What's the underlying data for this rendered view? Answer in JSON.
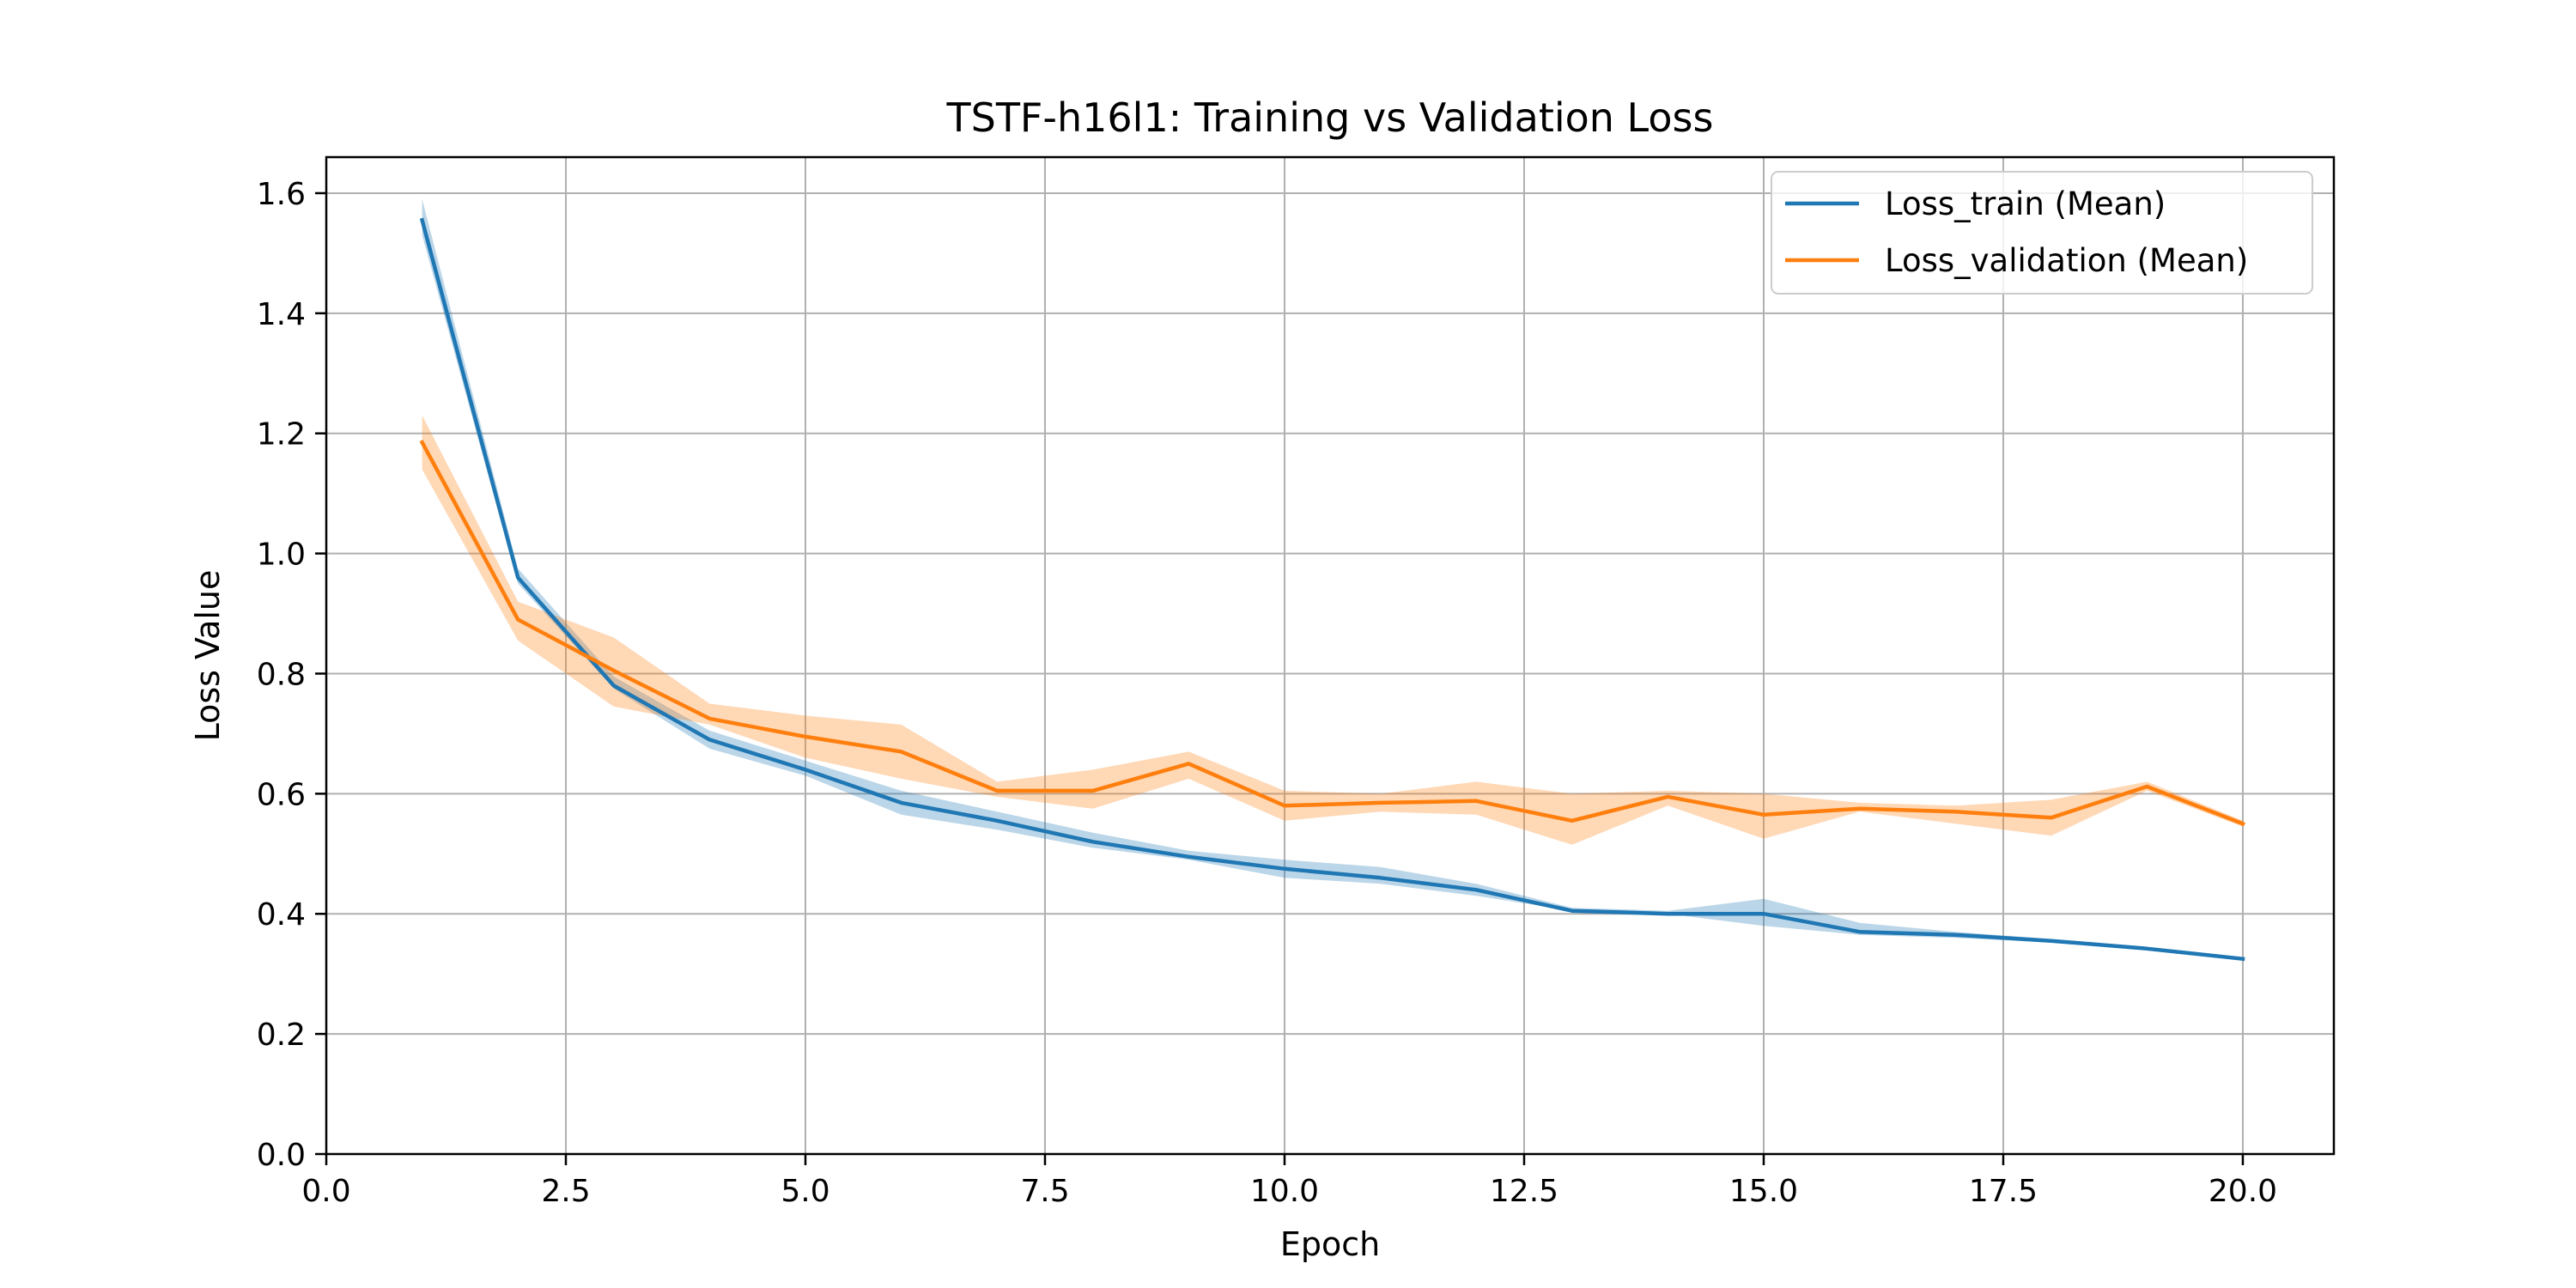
{
  "chart_data": {
    "type": "line",
    "title": "TSTF-h16l1: Training vs Validation Loss",
    "xlabel": "Epoch",
    "ylabel": "Loss Value",
    "xlim": [
      0,
      20.95
    ],
    "ylim": [
      0,
      1.66
    ],
    "xticks": [
      0.0,
      2.5,
      5.0,
      7.5,
      10.0,
      12.5,
      15.0,
      17.5,
      20.0
    ],
    "xtick_labels": [
      "0.0",
      "2.5",
      "5.0",
      "7.5",
      "10.0",
      "12.5",
      "15.0",
      "17.5",
      "20.0"
    ],
    "yticks": [
      0.0,
      0.2,
      0.4,
      0.6,
      0.8,
      1.0,
      1.2,
      1.4,
      1.6
    ],
    "ytick_labels": [
      "0.0",
      "0.2",
      "0.4",
      "0.6",
      "0.8",
      "1.0",
      "1.2",
      "1.4",
      "1.6"
    ],
    "grid": true,
    "legend_position": "top-right",
    "x": [
      1,
      2,
      3,
      4,
      5,
      6,
      7,
      8,
      9,
      10,
      11,
      12,
      13,
      14,
      15,
      16,
      17,
      18,
      19,
      20
    ],
    "series": [
      {
        "name": "Loss_train (Mean)",
        "color": "#1f77b4",
        "values": [
          1.555,
          0.96,
          0.78,
          0.69,
          0.64,
          0.585,
          0.555,
          0.52,
          0.495,
          0.475,
          0.46,
          0.44,
          0.405,
          0.4,
          0.4,
          0.37,
          0.365,
          0.355,
          0.342,
          0.325
        ],
        "lower": [
          1.53,
          0.95,
          0.775,
          0.675,
          0.63,
          0.565,
          0.54,
          0.51,
          0.49,
          0.46,
          0.45,
          0.43,
          0.405,
          0.4,
          0.38,
          0.365,
          0.36,
          0.352,
          0.34,
          0.323
        ],
        "upper": [
          1.59,
          0.975,
          0.795,
          0.705,
          0.655,
          0.605,
          0.57,
          0.535,
          0.505,
          0.49,
          0.478,
          0.45,
          0.41,
          0.405,
          0.425,
          0.385,
          0.37,
          0.358,
          0.345,
          0.328
        ]
      },
      {
        "name": "Loss_validation (Mean)",
        "color": "#ff7f0e",
        "values": [
          1.185,
          0.89,
          0.805,
          0.725,
          0.695,
          0.67,
          0.605,
          0.605,
          0.65,
          0.58,
          0.585,
          0.588,
          0.555,
          0.595,
          0.565,
          0.575,
          0.57,
          0.56,
          0.612,
          0.55
        ],
        "lower": [
          1.14,
          0.855,
          0.745,
          0.715,
          0.66,
          0.625,
          0.595,
          0.575,
          0.625,
          0.555,
          0.57,
          0.565,
          0.515,
          0.58,
          0.525,
          0.57,
          0.55,
          0.53,
          0.605,
          0.545
        ],
        "upper": [
          1.23,
          0.92,
          0.86,
          0.75,
          0.73,
          0.715,
          0.62,
          0.64,
          0.67,
          0.605,
          0.6,
          0.62,
          0.6,
          0.605,
          0.6,
          0.585,
          0.58,
          0.59,
          0.62,
          0.555
        ]
      }
    ]
  }
}
